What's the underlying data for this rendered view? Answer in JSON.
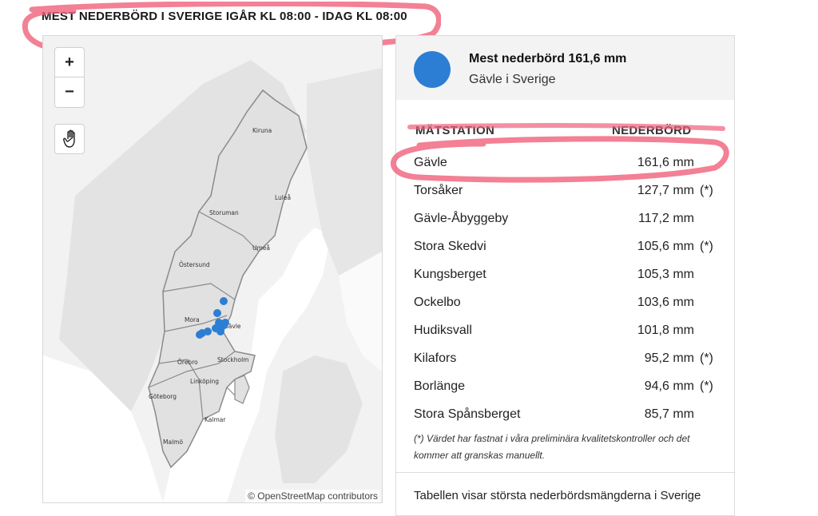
{
  "page": {
    "title": "MEST NEDERBÖRD I SVERIGE IGÅR KL 08:00 - IDAG KL 08:00"
  },
  "map": {
    "zoom_in_label": "+",
    "zoom_out_label": "−",
    "attribution": "© OpenStreetMap contributors",
    "cities": {
      "kiruna": "Kiruna",
      "lulea": "Luleå",
      "storuman": "Storuman",
      "umea": "Umeå",
      "ostersund": "Östersund",
      "mora": "Mora",
      "gavle": "Gävle",
      "orebro": "Örebro",
      "stockholm": "Stockholm",
      "linkoping": "Linköping",
      "goteborg": "Göteborg",
      "kalmar": "Kalmar",
      "malmo": "Malmö"
    },
    "marker_color": "#2b7ed4"
  },
  "panel": {
    "header_title": "Mest nederbörd 161,6 mm",
    "header_subtitle": "Gävle i Sverige",
    "col_station": "MÄTSTATION",
    "col_precip": "NEDERBÖRD",
    "rows": [
      {
        "name": "Gävle",
        "value": "161,6 mm",
        "mark": ""
      },
      {
        "name": "Torsåker",
        "value": "127,7 mm",
        "mark": "(*)"
      },
      {
        "name": "Gävle-Åbyggeby",
        "value": "117,2 mm",
        "mark": ""
      },
      {
        "name": "Stora Skedvi",
        "value": "105,6 mm",
        "mark": "(*)"
      },
      {
        "name": "Kungsberget",
        "value": "105,3 mm",
        "mark": ""
      },
      {
        "name": "Ockelbo",
        "value": "103,6 mm",
        "mark": ""
      },
      {
        "name": "Hudiksvall",
        "value": "101,8 mm",
        "mark": ""
      },
      {
        "name": "Kilafors",
        "value": "95,2 mm",
        "mark": "(*)"
      },
      {
        "name": "Borlänge",
        "value": "94,6 mm",
        "mark": "(*)"
      },
      {
        "name": "Stora Spånsberget",
        "value": "85,7 mm",
        "mark": ""
      }
    ],
    "footnote": "(*) Värdet har fastnat i våra preliminära kvalitetskontroller och det kommer att granskas manuellt.",
    "bottom_text": "Tabellen visar största nederbördsmängderna i Sverige"
  },
  "colors": {
    "accent": "#2b7ed4",
    "annotation": "#f0607a"
  },
  "icons": {
    "zoom_in": "plus-icon",
    "zoom_out": "minus-icon",
    "pan": "hand-icon"
  }
}
